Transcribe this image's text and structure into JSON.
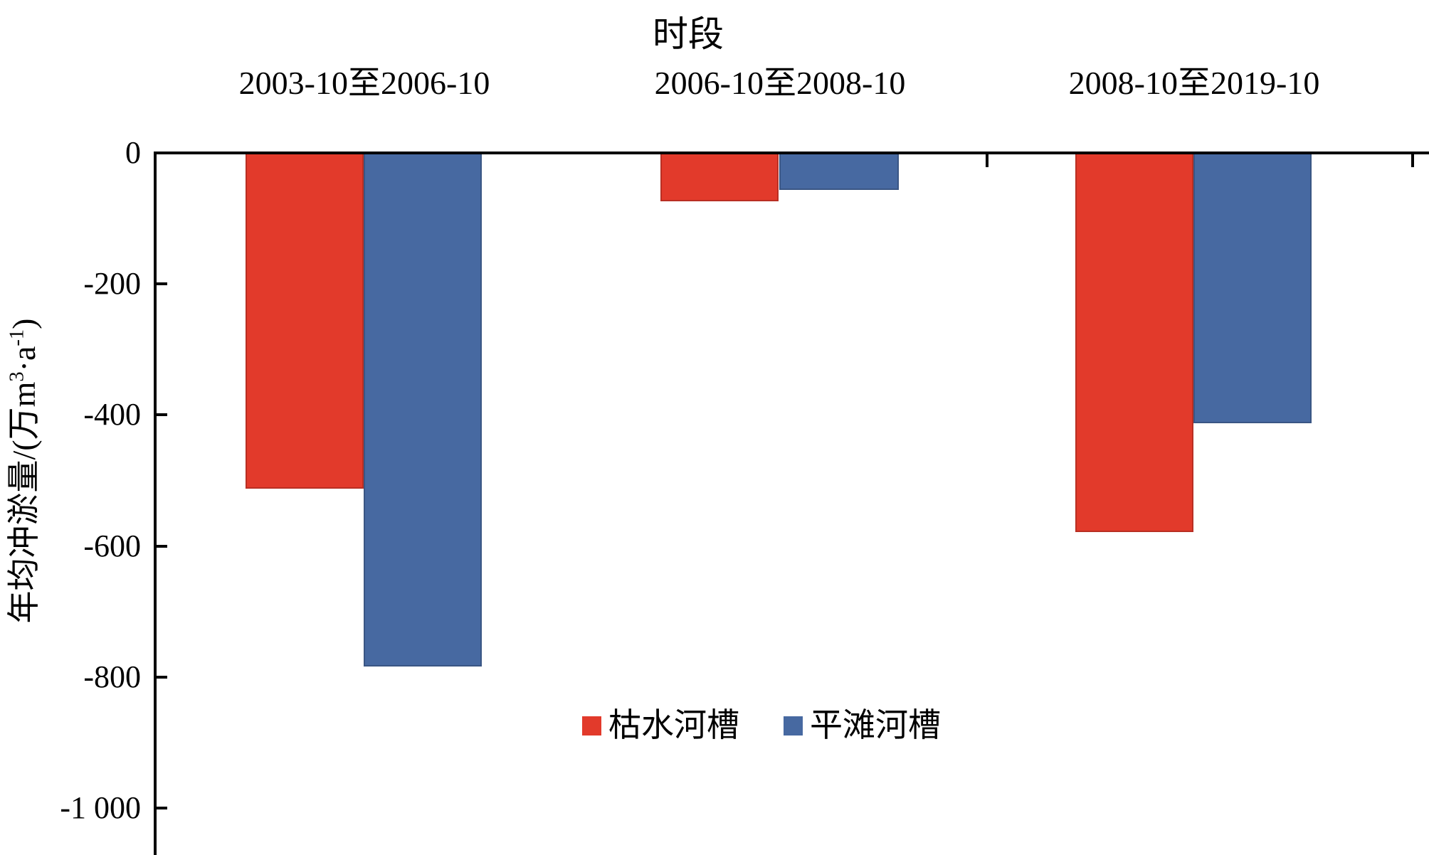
{
  "chart_data": {
    "type": "bar",
    "title": "时段",
    "title_position": "top",
    "xlabel": "时段",
    "ylabel": "年均冲淤量/(万m³·a⁻¹)",
    "ylabel_parts": {
      "seg1": "年均冲淤量/(万m",
      "sup1": "3",
      "seg2": "·a",
      "sup2": "-1",
      "seg3": ")"
    },
    "categories": [
      "2003-10至2006-10",
      "2006-10至2008-10",
      "2008-10至2019-10"
    ],
    "series": [
      {
        "name": "枯水河槽",
        "color": "#e23a2b",
        "values": [
          -512,
          -74,
          -579
        ]
      },
      {
        "name": "平滩河槽",
        "color": "#4769a1",
        "values": [
          -784,
          -57,
          -413
        ]
      }
    ],
    "yaxis": {
      "tick_values": [
        0,
        -200,
        -400,
        -600,
        -800,
        -1000
      ],
      "tick_labels": [
        "0",
        "-200",
        "-400",
        "-600",
        "-800",
        "-1 000"
      ],
      "range_visible": [
        -1070,
        0
      ],
      "grid": false,
      "ticks_direction": "in"
    },
    "legend_position": "inside-bottom-center",
    "background": "#ffffff",
    "axis_color": "#000000"
  }
}
